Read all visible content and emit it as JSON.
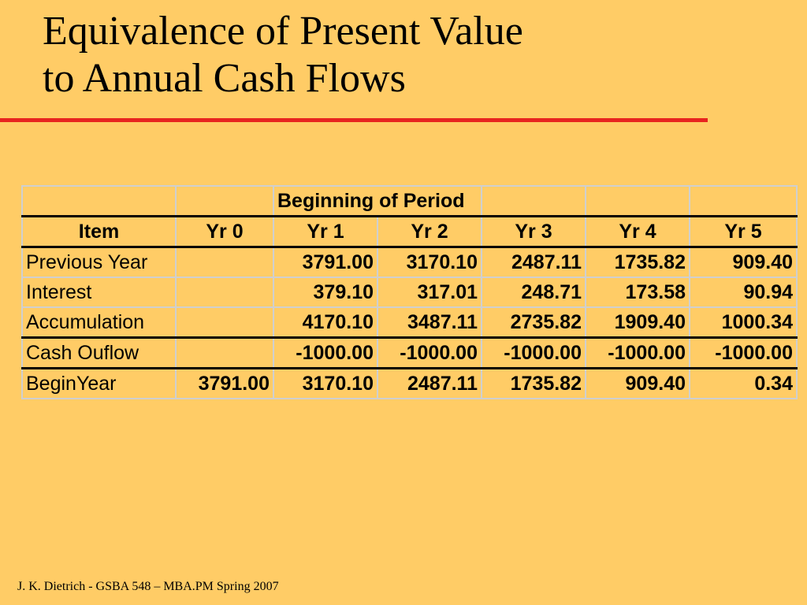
{
  "title": {
    "line1": "Equivalence of Present Value",
    "line2": "to Annual Cash Flows"
  },
  "table": {
    "group_header": "Beginning of Period",
    "columns": [
      "Item",
      "Yr 0",
      "Yr 1",
      "Yr 2",
      "Yr 3",
      "Yr 4",
      "Yr 5"
    ],
    "rows": [
      {
        "label": "Previous Year",
        "values": [
          "",
          "3791.00",
          "3170.10",
          "2487.11",
          "1735.82",
          "909.40"
        ]
      },
      {
        "label": "Interest",
        "values": [
          "",
          "379.10",
          "317.01",
          "248.71",
          "173.58",
          "90.94"
        ]
      },
      {
        "label": "Accumulation",
        "values": [
          "",
          "4170.10",
          "3487.11",
          "2735.82",
          "1909.40",
          "1000.34"
        ]
      },
      {
        "label": "Cash Ouflow",
        "values": [
          "",
          "-1000.00",
          "-1000.00",
          "-1000.00",
          "-1000.00",
          "-1000.00"
        ]
      },
      {
        "label": "BeginYear",
        "values": [
          "3791.00",
          "3170.10",
          "2487.11",
          "1735.82",
          "909.40",
          "0.34"
        ]
      }
    ]
  },
  "footer": "J. K. Dietrich -  GSBA 548 – MBA.PM Spring 2007",
  "colors": {
    "background": "#FFCC66",
    "rule": "#E8231F",
    "grid": "#CFCFCF"
  }
}
